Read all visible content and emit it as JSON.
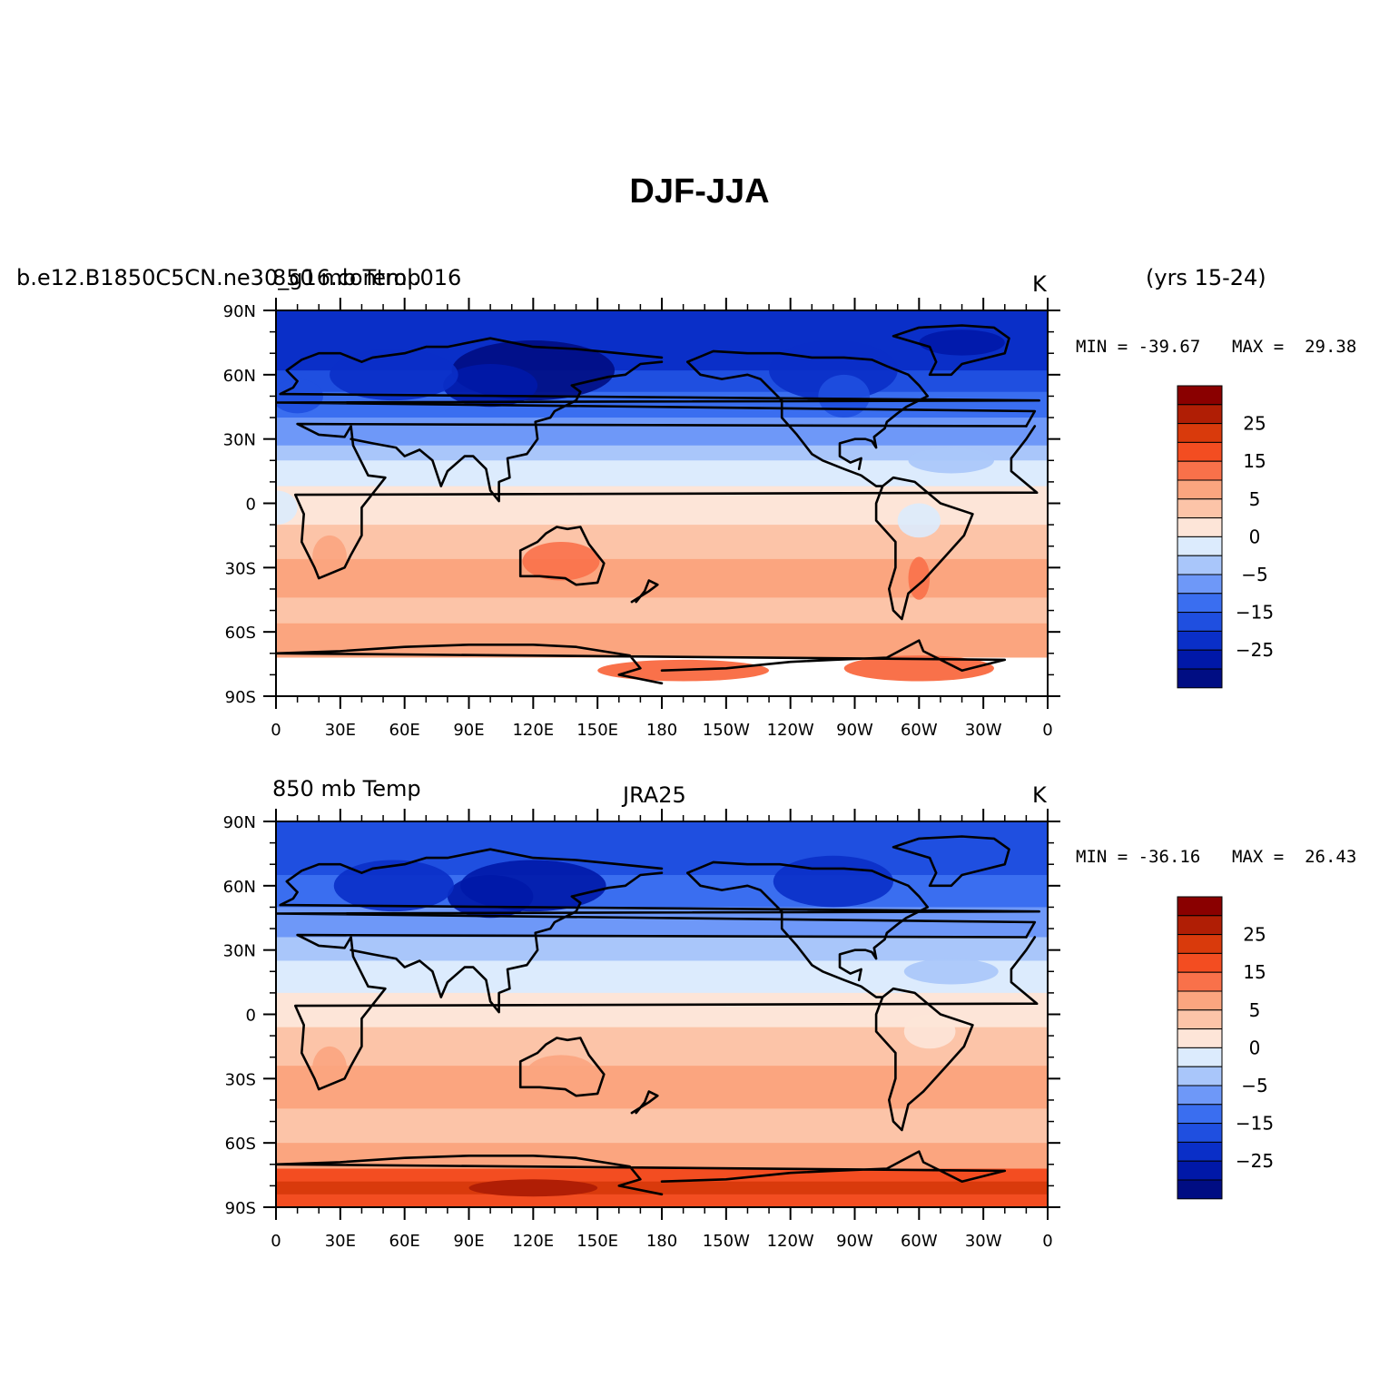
{
  "figure": {
    "title": "DJF-JJA",
    "colors": {
      "levels": [
        "#000d83",
        "#0018a8",
        "#0a2fc8",
        "#1f4fe0",
        "#3a6ef0",
        "#6e98f8",
        "#a9c6fa",
        "#dcebfd",
        "#fde5d8",
        "#fcc4a8",
        "#fba57f",
        "#f9714a",
        "#f34d21",
        "#d93a0c",
        "#b01e05",
        "#8a0000"
      ],
      "missing": "#ffffff",
      "coastline": "#000000"
    },
    "panels": [
      {
        "case_name": "b.e12.B1850C5CN.ne30_g16.control.016",
        "variable": "850 mb Temp",
        "center_label": "",
        "units": "K",
        "years": "(yrs 15-24)",
        "min_text": "MIN = -39.67",
        "max_text": "MAX =  29.38",
        "field_min": -39.67,
        "field_max": 29.38,
        "antarctic_interior_missing": true
      },
      {
        "case_name": "",
        "variable": "850 mb Temp",
        "center_label": "JRA25",
        "units": "K",
        "years": "",
        "min_text": "MIN = -36.16",
        "max_text": "MAX =  26.43",
        "field_min": -36.16,
        "field_max": 26.43,
        "antarctic_interior_missing": false
      }
    ],
    "axes": {
      "lat_ticks": [
        "90N",
        "60N",
        "30N",
        "0",
        "30S",
        "60S",
        "90S"
      ],
      "lon_ticks": [
        "0",
        "30E",
        "60E",
        "90E",
        "120E",
        "150E",
        "180",
        "150W",
        "120W",
        "90W",
        "60W",
        "30W",
        "0"
      ]
    },
    "colorbar": {
      "labels": [
        "25",
        "15",
        "5",
        "0",
        "−5",
        "−15",
        "−25"
      ]
    }
  }
}
